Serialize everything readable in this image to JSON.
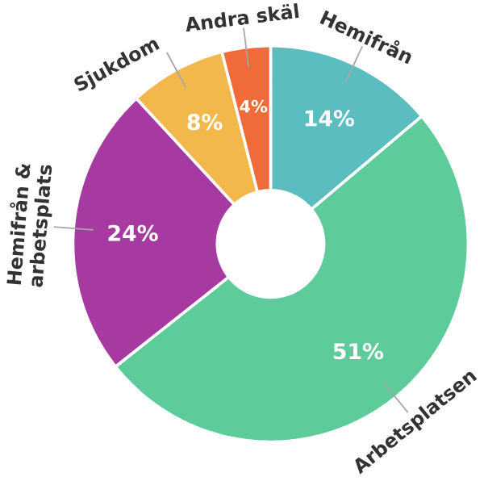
{
  "chart_data": {
    "type": "donut",
    "categories": [
      "Hemifrån",
      "Arbetsplatsen",
      "Hemifrån & arbetsplats",
      "Sjukdom",
      "Andra skäl"
    ],
    "values": [
      14,
      51,
      24,
      8,
      4
    ],
    "value_labels": [
      "14%",
      "51%",
      "24%",
      "8%",
      "4%"
    ],
    "colors": [
      "#5bbdbf",
      "#5ecb9b",
      "#a63aa0",
      "#f2b84b",
      "#ef6b3a"
    ]
  }
}
